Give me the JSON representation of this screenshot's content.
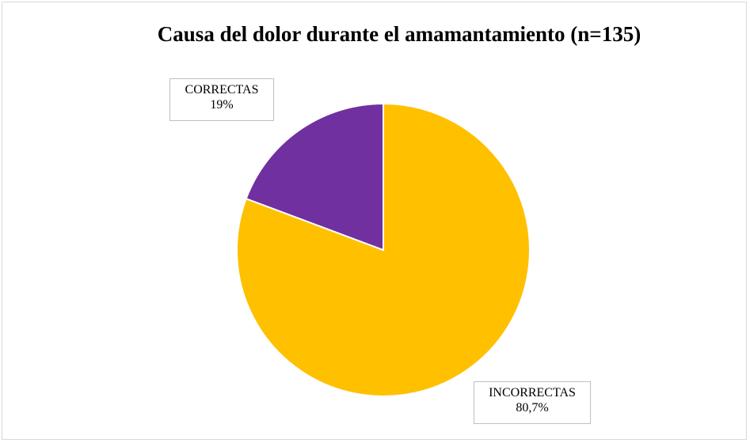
{
  "chart_data": {
    "type": "pie",
    "title": "Causa del dolor durante el amamantamiento (n=135)",
    "slices": [
      {
        "name": "INCORRECTAS",
        "value": 80.7,
        "label": "80,7%",
        "color": "#FFC000"
      },
      {
        "name": "CORRECTAS",
        "value": 19.3,
        "label": "19%",
        "color": "#7030A0"
      }
    ],
    "start_angle_deg": 0,
    "direction": "clockwise",
    "legend": "none"
  }
}
